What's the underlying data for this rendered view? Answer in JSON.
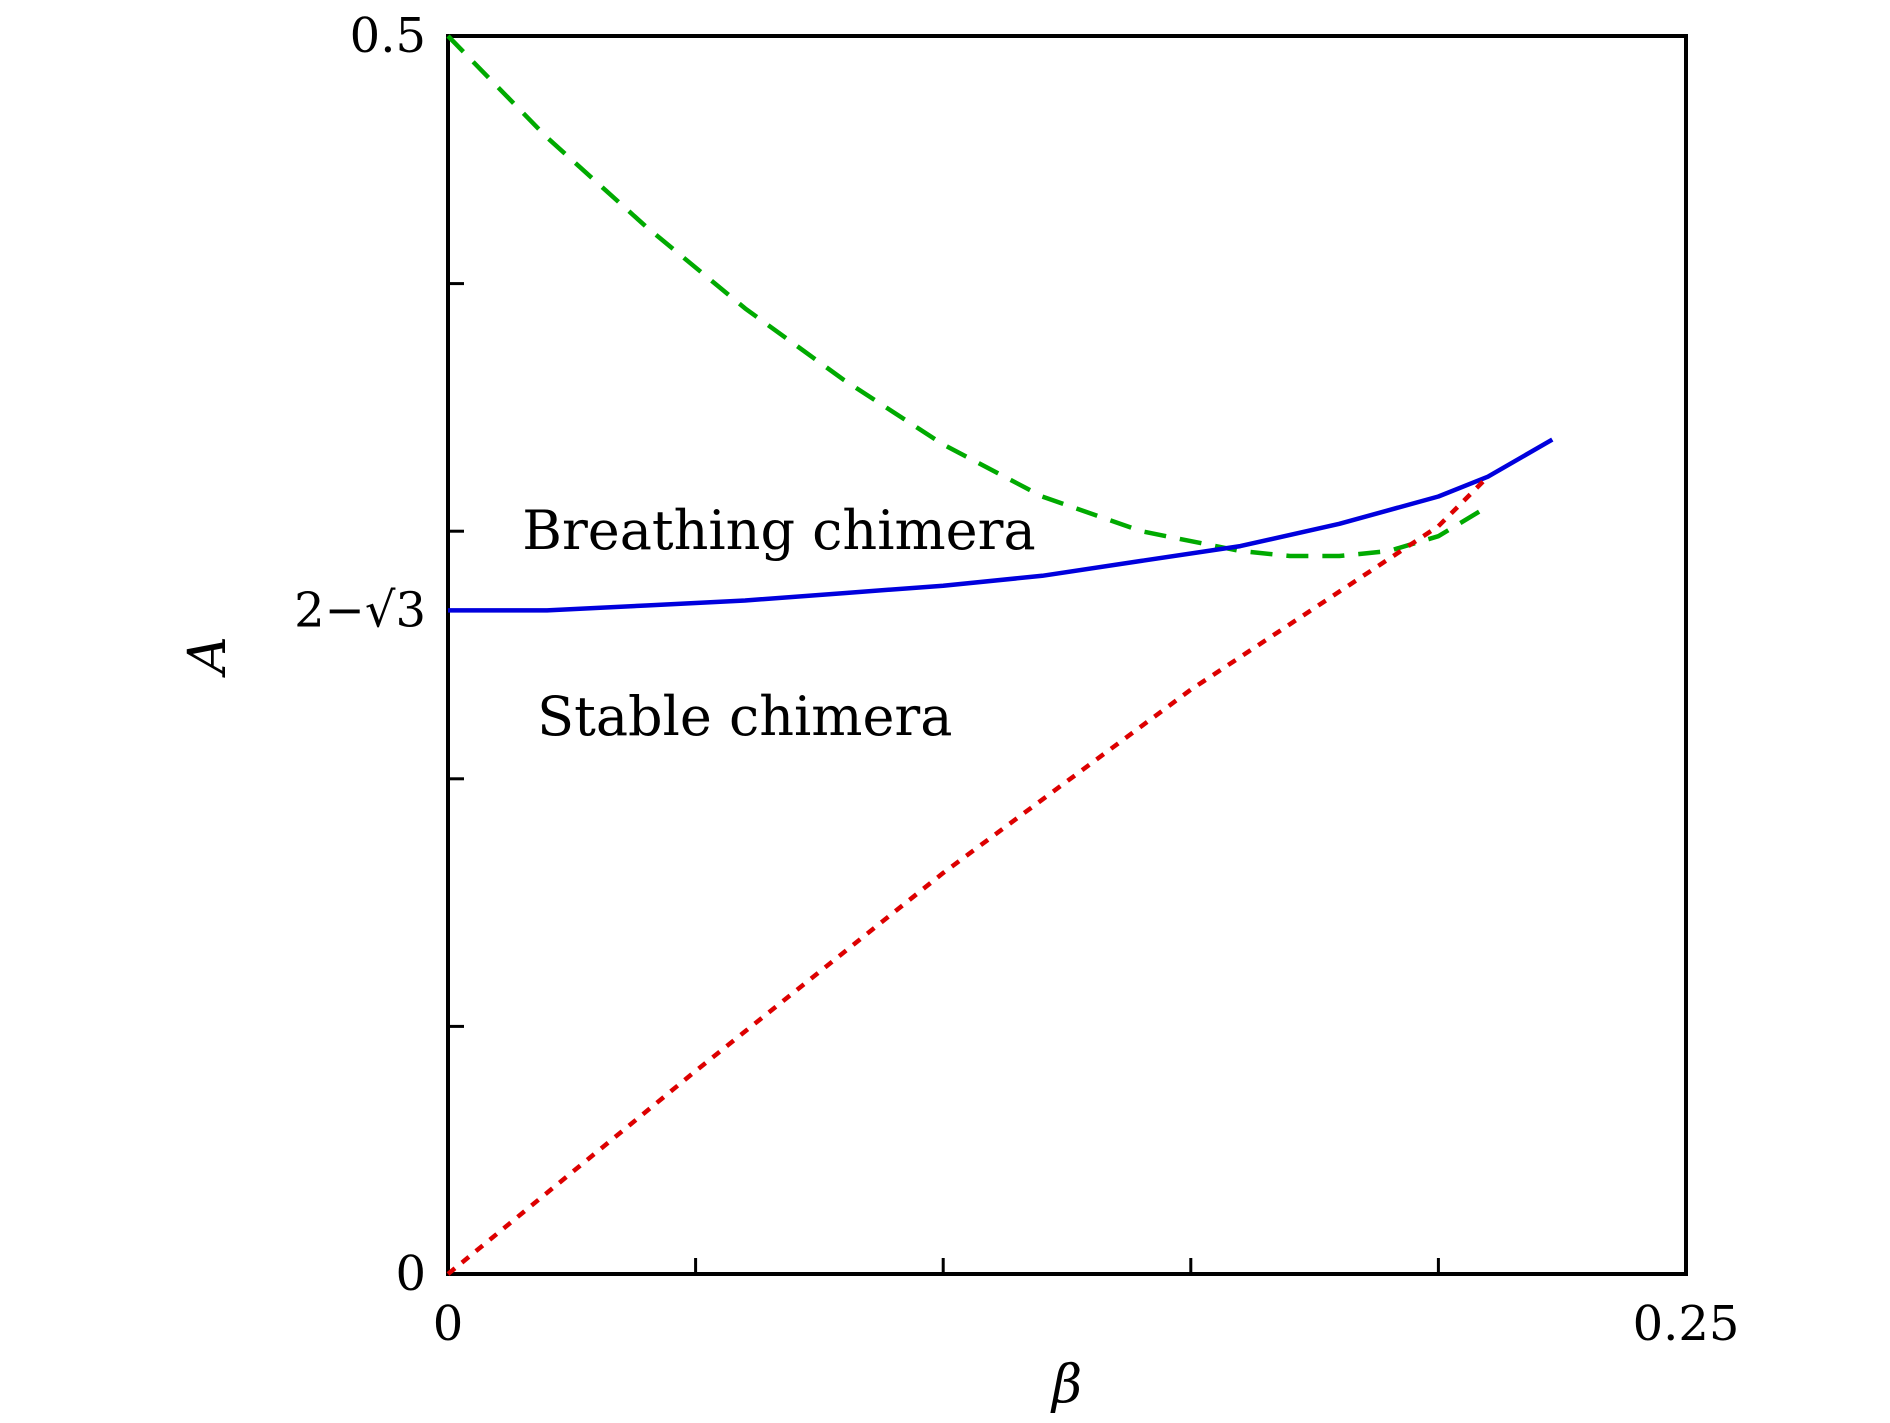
{
  "chart_data": {
    "type": "line",
    "title": "",
    "xlabel": "β",
    "ylabel": "A",
    "xlim": [
      0,
      0.25
    ],
    "ylim": [
      0,
      0.5
    ],
    "grid": false,
    "x_ticks": [
      0,
      0.05,
      0.1,
      0.15,
      0.2,
      0.25
    ],
    "x_tick_labels": [
      {
        "value": 0,
        "label": "0"
      },
      {
        "value": 0.25,
        "label": "0.25"
      }
    ],
    "y_ticks": [
      0,
      0.1,
      0.2,
      0.3,
      0.4,
      0.5
    ],
    "y_tick_labels": [
      {
        "value": 0,
        "label": "0"
      },
      {
        "value": 0.268,
        "label": "2−√3"
      },
      {
        "value": 0.5,
        "label": "0.5"
      }
    ],
    "annotations": [
      {
        "text": "Breathing chimera",
        "x": 0.015,
        "y": 0.3
      },
      {
        "text": "Stable chimera",
        "x": 0.018,
        "y": 0.225
      }
    ],
    "series": [
      {
        "style": "dashed",
        "color": "#00aa00",
        "x": [
          0,
          0.02,
          0.04,
          0.06,
          0.08,
          0.1,
          0.12,
          0.14,
          0.16,
          0.17,
          0.18,
          0.19,
          0.2,
          0.21
        ],
        "y": [
          0.5,
          0.459,
          0.423,
          0.39,
          0.361,
          0.335,
          0.314,
          0.3,
          0.292,
          0.29,
          0.29,
          0.292,
          0.298,
          0.31
        ]
      },
      {
        "style": "solid",
        "color": "#0000dd",
        "x": [
          0,
          0.02,
          0.04,
          0.06,
          0.08,
          0.1,
          0.12,
          0.14,
          0.16,
          0.18,
          0.2,
          0.21,
          0.223
        ],
        "y": [
          0.268,
          0.268,
          0.27,
          0.272,
          0.275,
          0.278,
          0.282,
          0.288,
          0.294,
          0.303,
          0.314,
          0.322,
          0.337
        ]
      },
      {
        "style": "dotted",
        "color": "#dd0000",
        "x": [
          0,
          0.05,
          0.1,
          0.15,
          0.2,
          0.21
        ],
        "y": [
          0,
          0.082,
          0.162,
          0.236,
          0.302,
          0.322
        ]
      }
    ]
  }
}
